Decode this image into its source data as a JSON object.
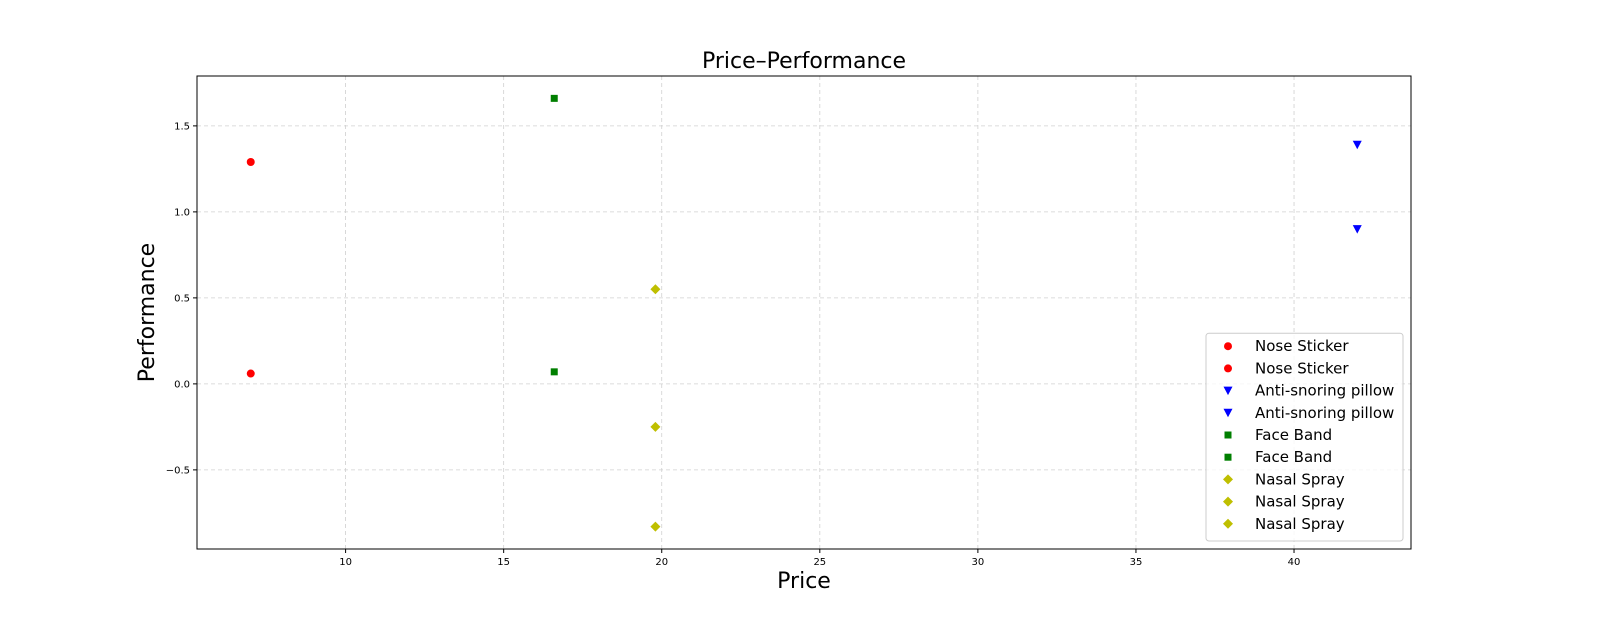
{
  "chart_data": {
    "type": "scatter",
    "title": "Price–Performance",
    "xlabel": "Price",
    "ylabel": "Performance",
    "xlim": [
      5.3,
      43.7
    ],
    "ylim": [
      -0.96,
      1.79
    ],
    "xticks": [
      10,
      15,
      20,
      25,
      30,
      35,
      40
    ],
    "yticks": [
      -0.5,
      0.0,
      0.5,
      1.0,
      1.5
    ],
    "ytick_labels": [
      "−0.5",
      "0.0",
      "0.5",
      "1.0",
      "1.5"
    ],
    "grid": true,
    "legend_position": "bottom-right",
    "series": [
      {
        "name": "Nose Sticker",
        "marker": "circle",
        "color": "#ff0000",
        "points": [
          {
            "x": 7.0,
            "y": 1.29
          }
        ]
      },
      {
        "name": "Nose Sticker",
        "marker": "circle",
        "color": "#ff0000",
        "points": [
          {
            "x": 7.0,
            "y": 0.06
          }
        ]
      },
      {
        "name": "Anti-snoring pillow",
        "marker": "triangle-down",
        "color": "#0000ff",
        "points": [
          {
            "x": 42.0,
            "y": 1.39
          }
        ]
      },
      {
        "name": "Anti-snoring pillow",
        "marker": "triangle-down",
        "color": "#0000ff",
        "points": [
          {
            "x": 42.0,
            "y": 0.9
          }
        ]
      },
      {
        "name": "Face Band",
        "marker": "square",
        "color": "#007f00",
        "points": [
          {
            "x": 16.6,
            "y": 1.66
          }
        ]
      },
      {
        "name": "Face Band",
        "marker": "square",
        "color": "#007f00",
        "points": [
          {
            "x": 16.6,
            "y": 0.07
          }
        ]
      },
      {
        "name": "Nasal Spray",
        "marker": "diamond",
        "color": "#bfbf00",
        "points": [
          {
            "x": 19.8,
            "y": 0.55
          }
        ]
      },
      {
        "name": "Nasal Spray",
        "marker": "diamond",
        "color": "#bfbf00",
        "points": [
          {
            "x": 19.8,
            "y": -0.25
          }
        ]
      },
      {
        "name": "Nasal Spray",
        "marker": "diamond",
        "color": "#bfbf00",
        "points": [
          {
            "x": 19.8,
            "y": -0.83
          }
        ]
      }
    ]
  }
}
